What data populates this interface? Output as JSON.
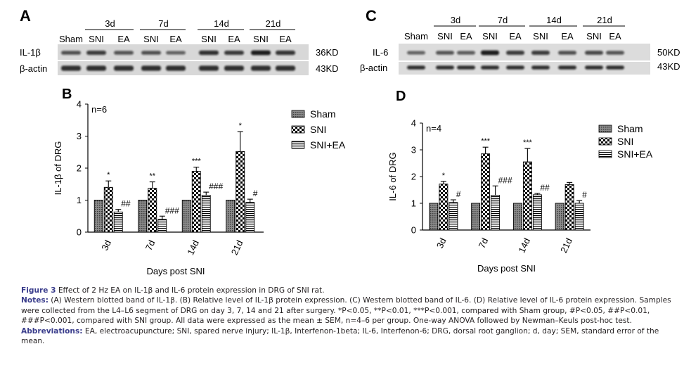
{
  "panels": {
    "A": {
      "letter": "A",
      "groups": [
        "3d",
        "7d",
        "14d",
        "21d"
      ],
      "lanes": [
        "Sham",
        "SNI",
        "EA",
        "SNI",
        "EA",
        "SNI",
        "EA",
        "SNI",
        "EA"
      ],
      "rows": [
        {
          "label": "IL-1β",
          "kd": "36KD",
          "intensity": [
            0.55,
            0.7,
            0.5,
            0.55,
            0.4,
            0.8,
            0.72,
            0.95,
            0.75
          ]
        },
        {
          "label": "β-actin",
          "kd": "43KD",
          "intensity": [
            0.8,
            0.8,
            0.8,
            0.8,
            0.8,
            0.8,
            0.8,
            0.8,
            0.8
          ]
        }
      ]
    },
    "C": {
      "letter": "C",
      "groups": [
        "3d",
        "7d",
        "14d",
        "21d"
      ],
      "lanes": [
        "Sham",
        "SNI",
        "EA",
        "SNI",
        "EA",
        "SNI",
        "EA",
        "SNI",
        "EA"
      ],
      "rows": [
        {
          "label": "IL-6",
          "kd": "50KD",
          "intensity": [
            0.4,
            0.5,
            0.45,
            0.95,
            0.7,
            0.7,
            0.55,
            0.6,
            0.5
          ]
        },
        {
          "label": "β-actin",
          "kd": "43KD",
          "intensity": [
            0.8,
            0.8,
            0.8,
            0.8,
            0.8,
            0.8,
            0.8,
            0.8,
            0.8
          ]
        }
      ]
    }
  },
  "chart_data": [
    {
      "panel": "B",
      "type": "bar",
      "annotation": "n=6",
      "ylabel": "IL-1β of DRG",
      "xlabel": "Days post SNI",
      "categories": [
        "3d",
        "7d",
        "14d",
        "21d"
      ],
      "ylim": [
        0,
        4
      ],
      "yticks": [
        "0",
        "1",
        "2",
        "3",
        "4"
      ],
      "legend_position": "top-right",
      "series": [
        {
          "name": "Sham",
          "values": [
            1.0,
            1.0,
            1.0,
            1.0
          ],
          "errors": [
            0,
            0,
            0,
            0
          ],
          "labels": [
            "",
            "",
            "",
            ""
          ]
        },
        {
          "name": "SNI",
          "values": [
            1.4,
            1.37,
            1.9,
            2.52
          ],
          "errors": [
            0.2,
            0.2,
            0.13,
            0.62
          ],
          "labels": [
            "*",
            "**",
            "***",
            "*"
          ]
        },
        {
          "name": "SNI+EA",
          "values": [
            0.63,
            0.4,
            1.15,
            0.93
          ],
          "errors": [
            0.08,
            0.1,
            0.1,
            0.1
          ],
          "labels": [
            "##",
            "###",
            "###",
            "#"
          ]
        }
      ]
    },
    {
      "panel": "D",
      "type": "bar",
      "annotation": "n=4",
      "ylabel": "IL-6 of DRG",
      "xlabel": "Days post SNI",
      "categories": [
        "3d",
        "7d",
        "14d",
        "21d"
      ],
      "ylim": [
        0,
        4
      ],
      "yticks": [
        "0",
        "1",
        "2",
        "3",
        "4"
      ],
      "legend_position": "top-right",
      "series": [
        {
          "name": "Sham",
          "values": [
            1.0,
            1.0,
            1.0,
            1.0
          ],
          "errors": [
            0,
            0,
            0,
            0
          ],
          "labels": [
            "",
            "",
            "",
            ""
          ]
        },
        {
          "name": "SNI",
          "values": [
            1.72,
            2.85,
            2.55,
            1.7
          ],
          "errors": [
            0.1,
            0.25,
            0.5,
            0.08
          ],
          "labels": [
            "*",
            "***",
            "***",
            ""
          ]
        },
        {
          "name": "SNI+EA",
          "values": [
            1.03,
            1.3,
            1.32,
            1.0
          ],
          "errors": [
            0.1,
            0.35,
            0.05,
            0.1
          ],
          "labels": [
            "#",
            "###",
            "##",
            "#"
          ]
        }
      ]
    }
  ],
  "caption": {
    "title_lead": "Figure 3",
    "title_text": " Effect of 2 Hz EA on IL-1β and IL-6 protein expression in DRG of SNI rat.",
    "notes_lead": "Notes:",
    "notes_text": " (A) Western blotted band of IL-1β. (B) Relative level of IL-1β protein expression. (C) Western blotted band of IL-6. (D) Relative level of IL-6 protein expression. Samples were collected from the L4–L6 segment of DRG on day 3, 7, 14 and 21 after surgery. *P<0.05, **P<0.01, ***P<0.001, compared with Sham group, #P<0.05, ##P<0.01, ###P<0.001, compared with SNI group. All data were expressed as the mean ± SEM, n=4–6 per group. One-way ANOVA followed by Newman–Keuls post-hoc test.",
    "abbrev_lead": "Abbreviations:",
    "abbrev_text": " EA, electroacupuncture; SNI, spared nerve injury; IL-1β, Interfenon-1beta; IL-6, Interfenon-6; DRG, dorsal root ganglion; d, day; SEM, standard error of the mean."
  },
  "colors": {
    "caption_lead": "#3a3d8c",
    "ink": "#000000",
    "blot": "#1a1a1a"
  }
}
